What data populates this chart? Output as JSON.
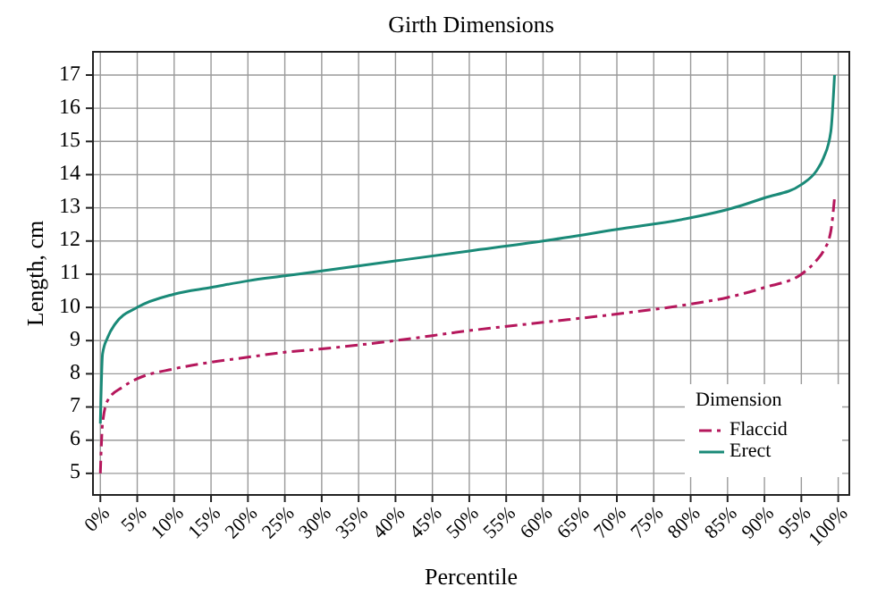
{
  "chart_data": {
    "type": "line",
    "title": "Girth Dimensions",
    "xlabel": "Percentile",
    "ylabel": "Length, cm",
    "legend_title": "Dimension",
    "legend": "bottom right",
    "grid": true,
    "xlim": [
      -1,
      101.5
    ],
    "ylim": [
      4.35,
      17.7
    ],
    "xticks": [
      {
        "value": 0,
        "label": "0%"
      },
      {
        "value": 5,
        "label": "5%"
      },
      {
        "value": 10,
        "label": "10%"
      },
      {
        "value": 15,
        "label": "15%"
      },
      {
        "value": 20,
        "label": "20%"
      },
      {
        "value": 25,
        "label": "25%"
      },
      {
        "value": 30,
        "label": "30%"
      },
      {
        "value": 35,
        "label": "35%"
      },
      {
        "value": 40,
        "label": "40%"
      },
      {
        "value": 45,
        "label": "45%"
      },
      {
        "value": 50,
        "label": "50%"
      },
      {
        "value": 55,
        "label": "55%"
      },
      {
        "value": 60,
        "label": "60%"
      },
      {
        "value": 65,
        "label": "65%"
      },
      {
        "value": 70,
        "label": "70%"
      },
      {
        "value": 75,
        "label": "75%"
      },
      {
        "value": 80,
        "label": "80%"
      },
      {
        "value": 85,
        "label": "85%"
      },
      {
        "value": 90,
        "label": "90%"
      },
      {
        "value": 95,
        "label": "95%"
      },
      {
        "value": 100,
        "label": "100%"
      }
    ],
    "yticks": [
      5,
      6,
      7,
      8,
      9,
      10,
      11,
      12,
      13,
      14,
      15,
      16,
      17
    ],
    "series": [
      {
        "name": "Flaccid",
        "color": "#b5175c",
        "line_style": "dashed",
        "x": [
          0,
          0.3,
          1,
          3,
          5,
          10,
          15,
          20,
          25,
          30,
          40,
          50,
          60,
          70,
          80,
          85,
          90,
          95,
          97,
          98,
          99,
          99.5
        ],
        "values": [
          5.0,
          6.5,
          7.2,
          7.6,
          7.85,
          8.15,
          8.35,
          8.5,
          8.65,
          8.75,
          9.0,
          9.3,
          9.55,
          9.8,
          10.1,
          10.3,
          10.6,
          11.0,
          11.4,
          11.7,
          12.3,
          13.3
        ]
      },
      {
        "name": "Erect",
        "color": "#1a8a78",
        "line_style": "solid",
        "x": [
          0,
          0.3,
          1,
          2,
          5,
          10,
          15,
          20,
          25,
          30,
          40,
          50,
          60,
          70,
          80,
          85,
          90,
          95,
          97,
          98,
          99,
          99.5
        ],
        "values": [
          6.5,
          8.6,
          9.1,
          9.5,
          10.0,
          10.4,
          10.6,
          10.8,
          10.95,
          11.1,
          11.4,
          11.7,
          12.0,
          12.35,
          12.7,
          12.95,
          13.3,
          13.7,
          14.1,
          14.5,
          15.3,
          17.0
        ]
      }
    ]
  }
}
